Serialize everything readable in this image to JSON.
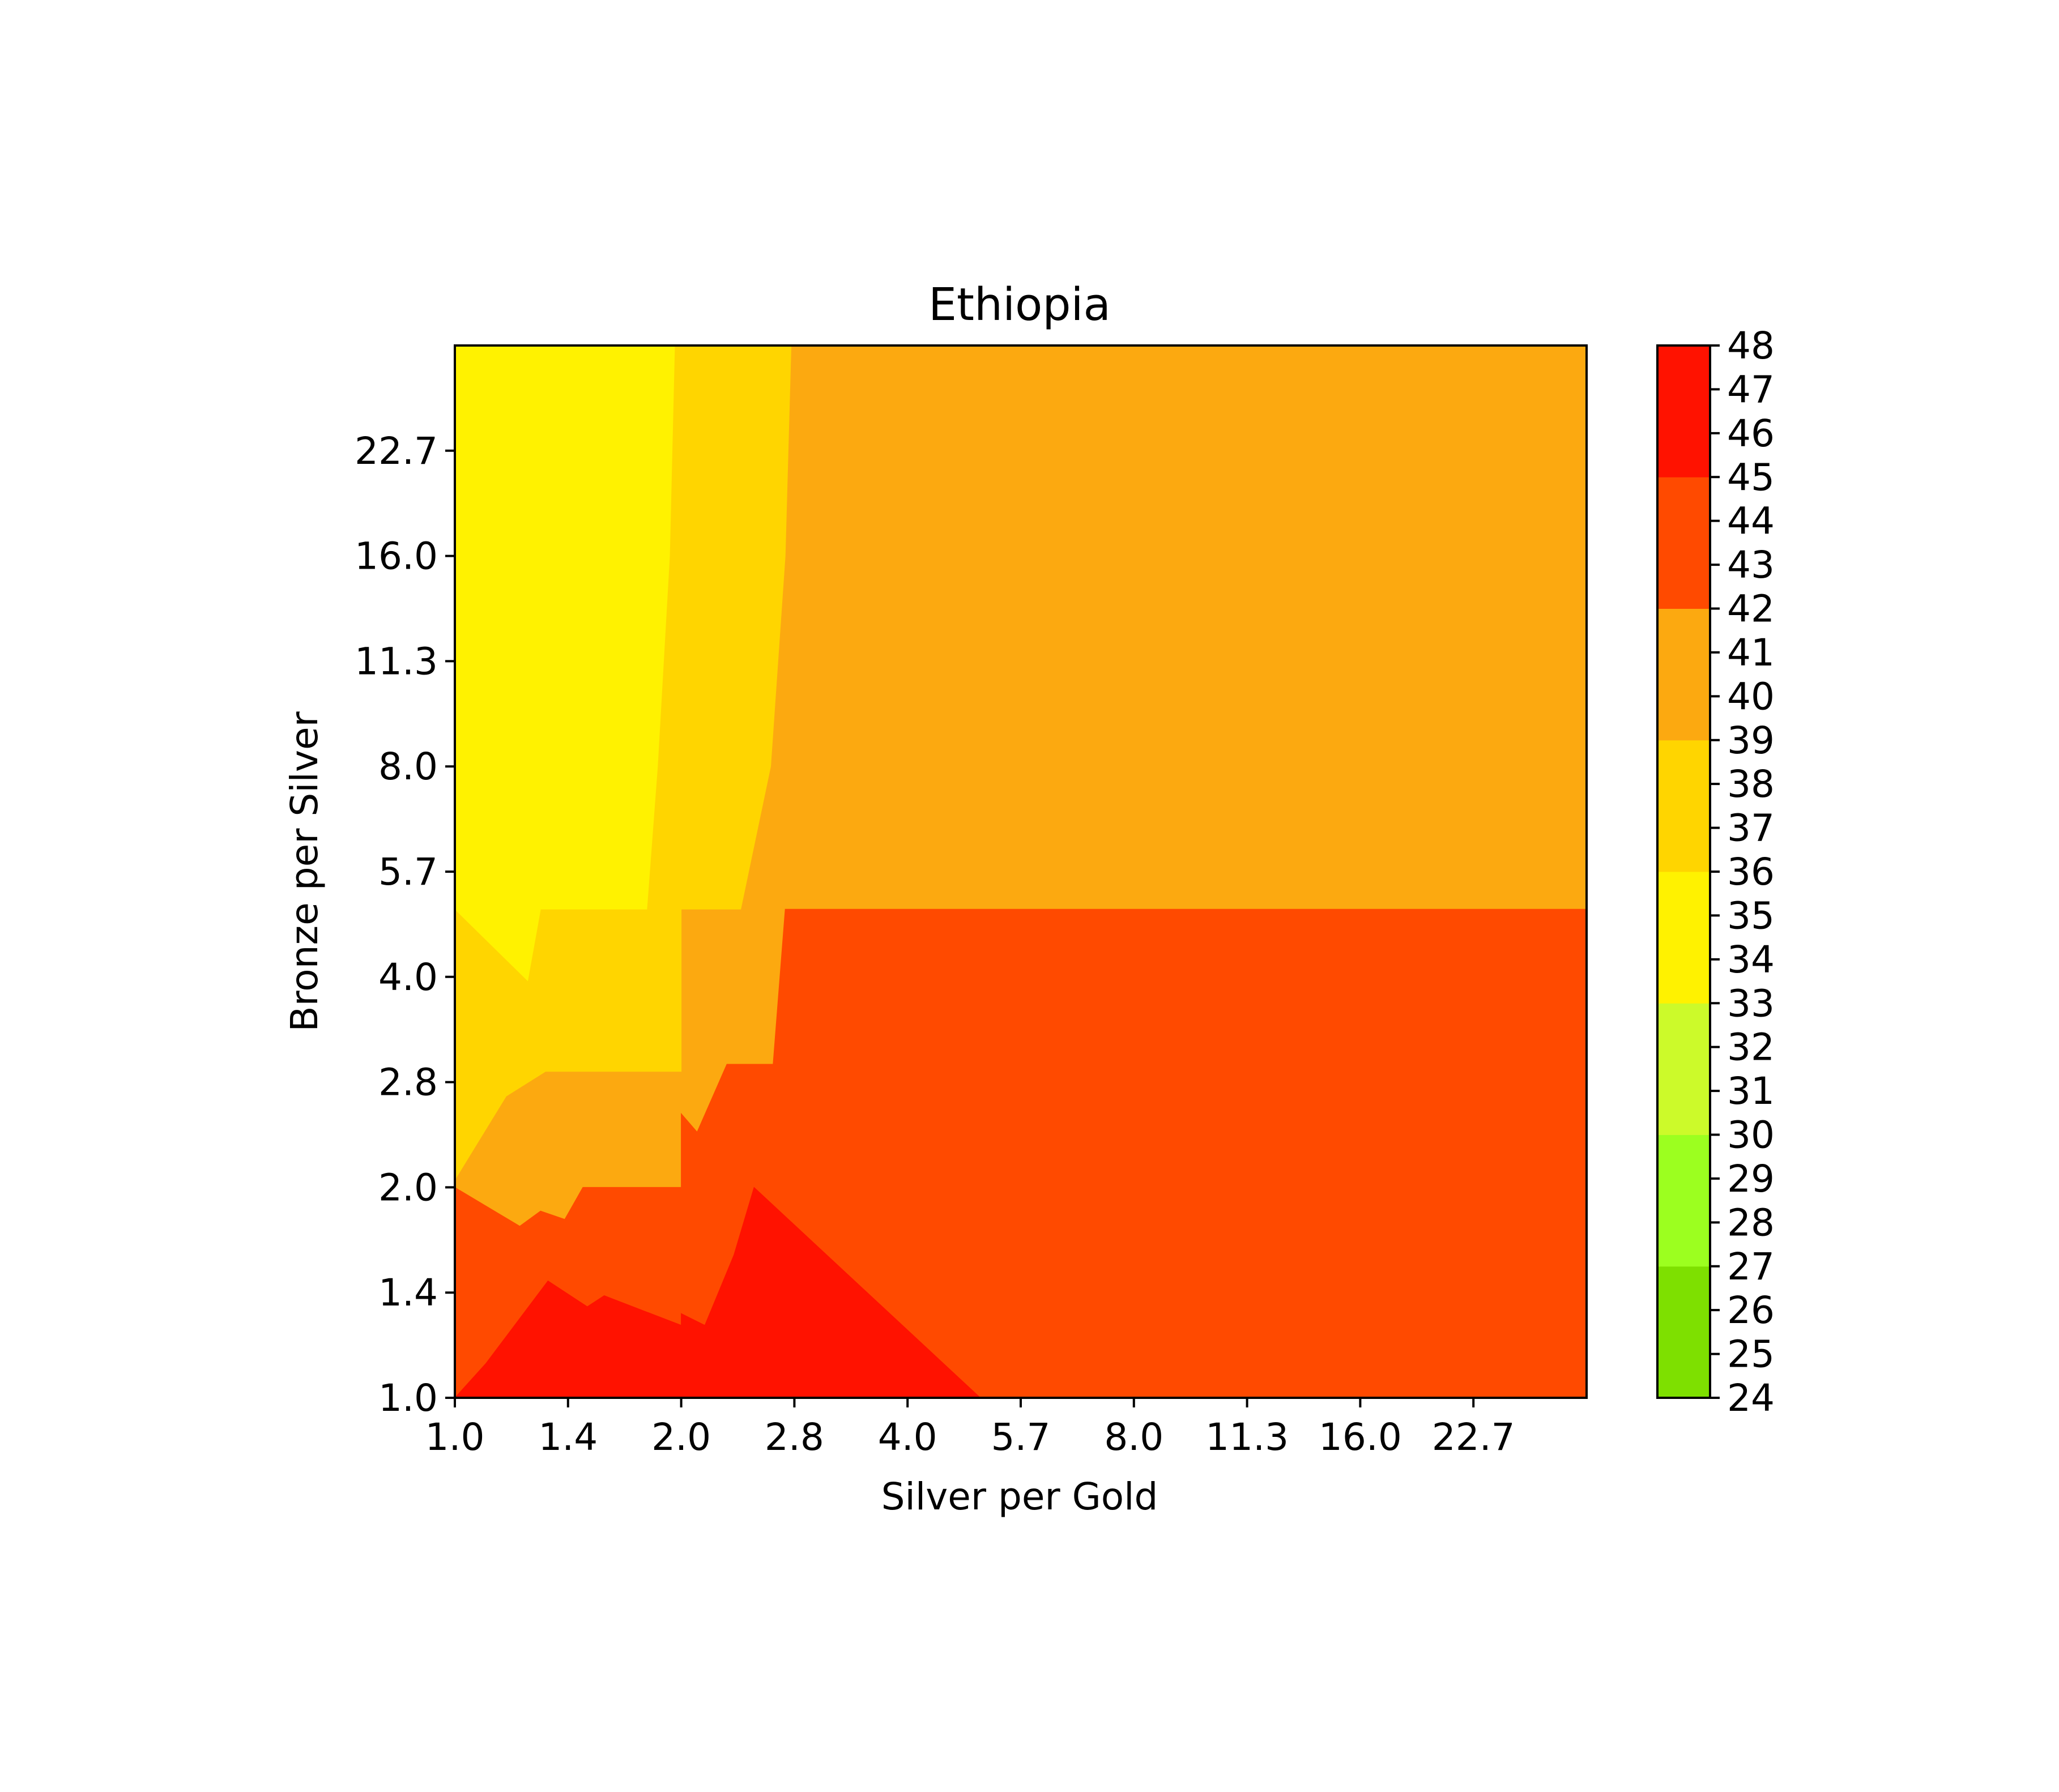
{
  "chart_data": {
    "type": "heatmap",
    "title": "Ethiopia",
    "xlabel": "Silver per Gold",
    "ylabel": "Bronze per Silver",
    "x_scale": "log2",
    "y_scale": "log2",
    "x_ticks": [
      "1.0",
      "1.4",
      "2.0",
      "2.8",
      "4.0",
      "5.7",
      "8.0",
      "11.3",
      "16.0",
      "22.7"
    ],
    "y_ticks": [
      "1.0",
      "1.4",
      "2.0",
      "2.8",
      "4.0",
      "5.7",
      "8.0",
      "11.3",
      "16.0",
      "22.7"
    ],
    "x_range": [
      1.0,
      32.0
    ],
    "y_range": [
      1.0,
      32.0
    ],
    "colorbar": {
      "ticks": [
        "24",
        "25",
        "26",
        "27",
        "28",
        "29",
        "30",
        "31",
        "32",
        "33",
        "34",
        "35",
        "36",
        "37",
        "38",
        "39",
        "40",
        "41",
        "42",
        "43",
        "44",
        "45",
        "46",
        "47",
        "48"
      ],
      "levels": [
        {
          "range": [
            24,
            27
          ],
          "color": "#7ee000"
        },
        {
          "range": [
            27,
            30
          ],
          "color": "#9cff1f"
        },
        {
          "range": [
            30,
            33
          ],
          "color": "#ccfa2a"
        },
        {
          "range": [
            33,
            36
          ],
          "color": "#fff200"
        },
        {
          "range": [
            36,
            39
          ],
          "color": "#ffd500"
        },
        {
          "range": [
            39,
            42
          ],
          "color": "#fca910"
        },
        {
          "range": [
            42,
            45
          ],
          "color": "#ff4a00"
        },
        {
          "range": [
            45,
            48
          ],
          "color": "#ff1200"
        }
      ]
    },
    "regions": [
      {
        "level": "39-42",
        "color": "#fca910",
        "points": [
          [
            1,
            1
          ],
          [
            32,
            1
          ],
          [
            32,
            32
          ],
          [
            1,
            32
          ]
        ]
      },
      {
        "level": "42-45",
        "color": "#ff4a00",
        "points": [
          [
            1,
            1
          ],
          [
            32,
            1
          ],
          [
            32,
            5
          ],
          [
            2.75,
            5
          ],
          [
            2.65,
            3
          ],
          [
            2.3,
            3
          ],
          [
            2.1,
            2.4
          ],
          [
            2,
            2.55
          ],
          [
            2,
            2
          ],
          [
            1.48,
            2
          ],
          [
            1.4,
            1.8
          ],
          [
            1.3,
            1.85
          ],
          [
            1.22,
            1.76
          ],
          [
            1,
            2
          ]
        ]
      },
      {
        "level": "45-48",
        "color": "#ff1200",
        "points": [
          [
            1,
            1
          ],
          [
            1.1,
            1.12
          ],
          [
            1.33,
            1.47
          ],
          [
            1.5,
            1.35
          ],
          [
            1.58,
            1.4
          ],
          [
            2,
            1.27
          ],
          [
            2,
            1.32
          ],
          [
            2.15,
            1.27
          ],
          [
            2.35,
            1.6
          ],
          [
            2.5,
            2
          ],
          [
            5,
            1
          ]
        ]
      },
      {
        "level": "36-39",
        "color": "#ffd500",
        "points": [
          [
            1,
            32
          ],
          [
            1,
            2.05
          ],
          [
            1.17,
            2.7
          ],
          [
            1.32,
            2.93
          ],
          [
            2,
            2.93
          ],
          [
            2,
            5
          ],
          [
            2.4,
            5
          ],
          [
            2.63,
            8
          ],
          [
            2.75,
            16
          ],
          [
            2.8,
            32
          ]
        ]
      },
      {
        "level": "33-36",
        "color": "#fff200",
        "points": [
          [
            1,
            32
          ],
          [
            1,
            5
          ],
          [
            1.25,
            3.95
          ],
          [
            1.3,
            5
          ],
          [
            1.8,
            5
          ],
          [
            1.86,
            8
          ],
          [
            1.93,
            16
          ],
          [
            1.96,
            32
          ]
        ]
      }
    ]
  }
}
